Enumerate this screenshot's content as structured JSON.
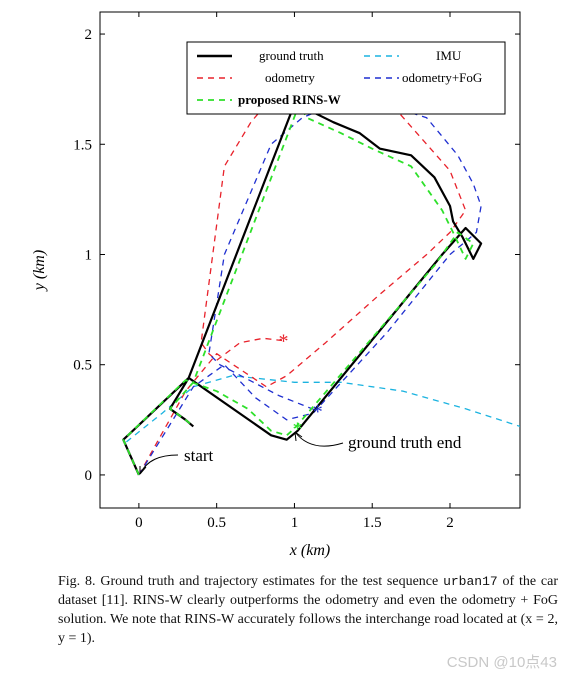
{
  "figure": {
    "caption_label": "Fig. 8.",
    "caption_part1": "Ground truth and trajectory estimates for the test sequence ",
    "caption_code": "urban17",
    "caption_part2": " of the car dataset [11]. RINS-W clearly outperforms the odometry and even the odometry + FoG solution. We note that RINS-W accurately follows the interchange road located at (x = 2, y = 1).",
    "watermark": "CSDN @10点43"
  },
  "chart_data": {
    "type": "line",
    "xlabel": "x (km)",
    "ylabel": "y (km)",
    "xlim": [
      -0.25,
      2.45
    ],
    "ylim": [
      -0.15,
      2.1
    ],
    "x_ticks": [
      0,
      0.5,
      1,
      1.5,
      2
    ],
    "x_tick_labels": [
      "0",
      "0.5",
      "1",
      "1.5",
      "2"
    ],
    "y_ticks": [
      0,
      0.5,
      1,
      1.5,
      2
    ],
    "y_tick_labels": [
      "0",
      "0.5",
      "1",
      "1.5",
      "2"
    ],
    "legend_position": "top-right",
    "annotations": [
      {
        "text": "start",
        "x": 0.4,
        "y": 0.1
      },
      {
        "text": "ground truth end",
        "x": 1.35,
        "y": 0.15
      }
    ],
    "series": [
      {
        "name": "ground truth",
        "color": "#000000",
        "dash": "solid",
        "x": [
          0,
          -0.05,
          -0.1,
          0.32,
          0.85,
          0.95,
          1.02,
          1.95,
          2.1,
          2.2,
          2.15,
          2.08,
          2.02,
          2.0,
          1.9,
          1.75,
          1.55,
          1.42,
          1.25,
          1.05,
          1.02,
          0.32,
          0.2,
          0.3,
          0.35
        ],
        "y": [
          0,
          0.08,
          0.16,
          0.44,
          0.18,
          0.16,
          0.2,
          1.0,
          1.12,
          1.05,
          0.98,
          1.08,
          1.15,
          1.22,
          1.35,
          1.45,
          1.48,
          1.55,
          1.6,
          1.67,
          1.72,
          0.44,
          0.3,
          0.25,
          0.22
        ]
      },
      {
        "name": "IMU",
        "color": "#1bb3e0",
        "dash": "dashed",
        "x": [
          -0.08,
          0.15,
          0.35,
          0.6,
          1.0,
          1.3,
          1.7,
          2.1,
          2.45
        ],
        "y": [
          0.15,
          0.28,
          0.4,
          0.45,
          0.42,
          0.42,
          0.38,
          0.3,
          0.22
        ]
      },
      {
        "name": "odometry",
        "color": "#e8222b",
        "dash": "dashed",
        "x": [
          0.0,
          0.3,
          0.5,
          0.82,
          0.95,
          1.2,
          1.55,
          1.85,
          2.0,
          2.1,
          2.0,
          1.85,
          1.6,
          1.25,
          1.05,
          0.9,
          0.72,
          0.55,
          0.4,
          0.45,
          0.5,
          0.65,
          0.8,
          0.92
        ],
        "y": [
          0.0,
          0.38,
          0.55,
          0.4,
          0.45,
          0.6,
          0.82,
          1.0,
          1.1,
          1.2,
          1.38,
          1.5,
          1.7,
          1.8,
          1.82,
          1.75,
          1.6,
          1.4,
          0.6,
          0.55,
          0.52,
          0.6,
          0.62,
          0.61
        ]
      },
      {
        "name": "odometry+FoG",
        "color": "#1f2fd0",
        "dash": "dashed",
        "x": [
          0.0,
          0.35,
          0.55,
          0.75,
          0.95,
          1.12,
          1.6,
          2.0,
          2.17,
          2.2,
          2.15,
          2.05,
          1.85,
          1.5,
          1.25,
          1.05,
          0.85,
          0.55,
          0.45,
          0.52,
          0.9,
          1.15
        ],
        "y": [
          0.0,
          0.4,
          0.5,
          0.35,
          0.25,
          0.28,
          0.65,
          1.0,
          1.1,
          1.22,
          1.32,
          1.45,
          1.62,
          1.7,
          1.68,
          1.62,
          1.5,
          1.0,
          0.55,
          0.5,
          0.36,
          0.29
        ]
      },
      {
        "name": "proposed RINS-W",
        "color": "#2ee02a",
        "dash": "dashed",
        "x": [
          0,
          -0.05,
          -0.1,
          0.3,
          0.5,
          0.7,
          0.85,
          0.95,
          1.0,
          1.9,
          2.05,
          2.15,
          2.1,
          2.02,
          1.95,
          1.75,
          1.5,
          1.3,
          1.08,
          1.03,
          0.35,
          0.2,
          0.3,
          0.35
        ],
        "y": [
          0,
          0.08,
          0.16,
          0.43,
          0.38,
          0.3,
          0.2,
          0.18,
          0.21,
          0.95,
          1.1,
          1.05,
          0.98,
          1.1,
          1.2,
          1.4,
          1.48,
          1.55,
          1.62,
          1.68,
          0.42,
          0.3,
          0.25,
          0.22
        ]
      }
    ],
    "markers": [
      {
        "series": "odometry",
        "x": 0.93,
        "y": 0.61,
        "symbol": "*"
      },
      {
        "series": "odometry+FoG",
        "x": 1.15,
        "y": 0.29,
        "symbol": "*"
      },
      {
        "series": "proposed RINS-W",
        "x": 1.02,
        "y": 0.21,
        "symbol": "*"
      }
    ]
  }
}
